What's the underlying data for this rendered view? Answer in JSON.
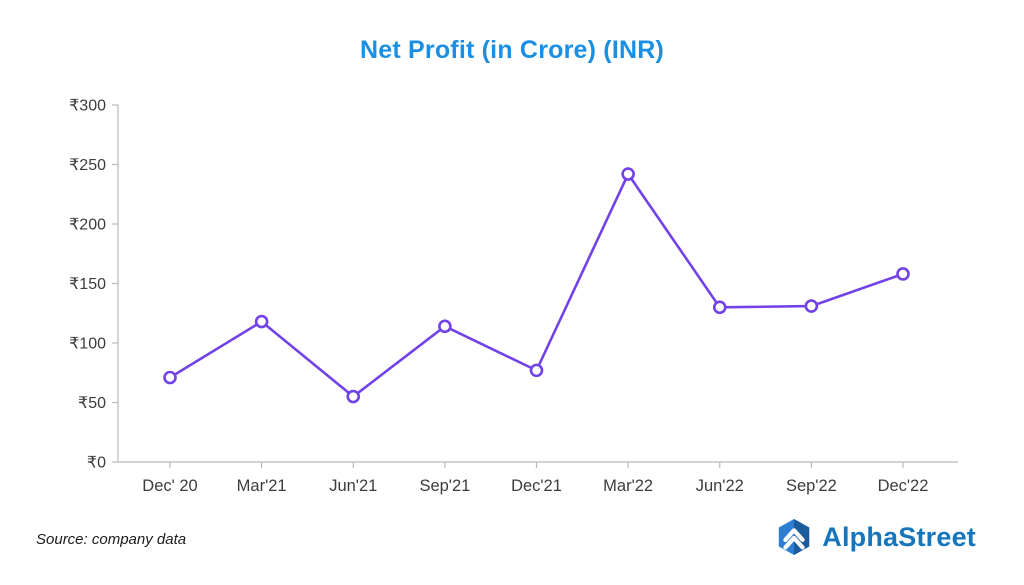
{
  "title": "Net Profit (in Crore) (INR)",
  "source_note": "Source: company data",
  "logo": {
    "text": "AlphaStreet"
  },
  "colors": {
    "title_blue": "#1a8fe3",
    "line_purple": "#7142e8",
    "marker_fill": "#ffffff",
    "axis_gray": "#b9b9b9",
    "label_gray": "#3c3c3c",
    "logo_text_blue": "#1576bb",
    "logo_badge_light": "#2e7fd3",
    "logo_badge_dark": "#1c5c9c"
  },
  "chart_data": {
    "type": "line",
    "title": "Net Profit (in Crore) (INR)",
    "categories": [
      "Dec' 20",
      "Mar'21",
      "Jun'21",
      "Sep'21",
      "Dec'21",
      "Mar'22",
      "Jun'22",
      "Sep'22",
      "Dec'22"
    ],
    "values": [
      71,
      118,
      55,
      114,
      77,
      242,
      130,
      131,
      158
    ],
    "xlabel": "",
    "ylabel": "",
    "ylim": [
      0,
      300
    ],
    "yticks": [
      0,
      50,
      100,
      150,
      200,
      250,
      300
    ],
    "ytick_prefix": "₹",
    "grid": false,
    "legend": "none",
    "marker": "circle-open"
  }
}
